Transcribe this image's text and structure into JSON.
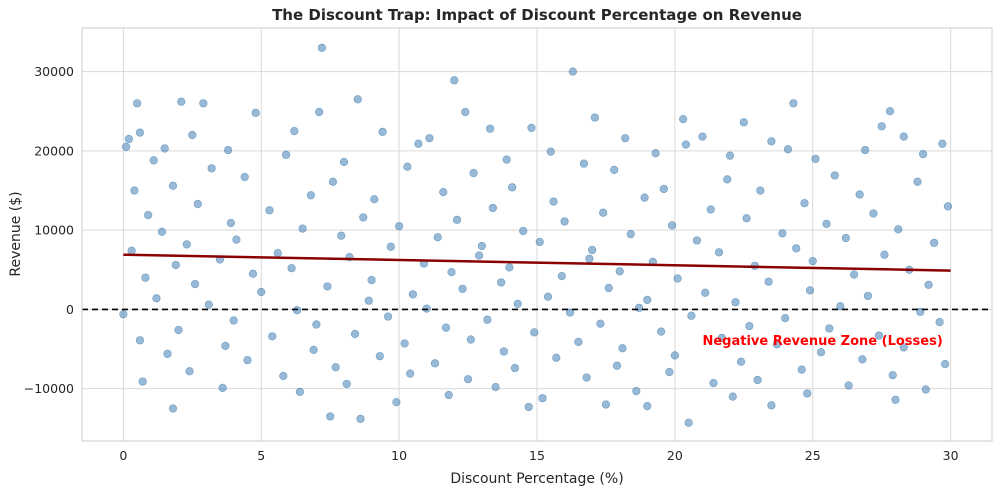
{
  "chart_data": {
    "type": "scatter",
    "title": "The Discount Trap: Impact of Discount Percentage on Revenue",
    "xlabel": "Discount Percentage (%)",
    "ylabel": "Revenue ($)",
    "xlim": [
      -1.5,
      31.5
    ],
    "ylim": [
      -16600,
      35500
    ],
    "xticks": [
      0,
      5,
      10,
      15,
      20,
      25,
      30
    ],
    "yticks": [
      -10000,
      0,
      10000,
      20000,
      30000
    ],
    "xtick_labels": [
      "0",
      "5",
      "10",
      "15",
      "20",
      "25",
      "30"
    ],
    "ytick_labels": [
      "−10000",
      "0",
      "10000",
      "20000",
      "30000"
    ],
    "grid": true,
    "legend": "none",
    "series": [
      {
        "type": "scatter",
        "color": "#4682b4",
        "opacity": 0.55,
        "points": [
          [
            7.2,
            33000
          ],
          [
            16.3,
            30000
          ],
          [
            12.0,
            28900
          ],
          [
            8.5,
            26500
          ],
          [
            2.1,
            26200
          ],
          [
            0.5,
            26000
          ],
          [
            2.9,
            26000
          ],
          [
            24.3,
            26000
          ],
          [
            27.8,
            25000
          ],
          [
            7.1,
            24900
          ],
          [
            12.4,
            24900
          ],
          [
            4.8,
            24800
          ],
          [
            17.1,
            24200
          ],
          [
            20.3,
            24000
          ],
          [
            22.5,
            23600
          ],
          [
            27.5,
            23100
          ],
          [
            13.3,
            22800
          ],
          [
            6.2,
            22500
          ],
          [
            14.8,
            22900
          ],
          [
            0.6,
            22300
          ],
          [
            0.2,
            21500
          ],
          [
            2.5,
            22000
          ],
          [
            9.4,
            22400
          ],
          [
            11.1,
            21600
          ],
          [
            21.0,
            21800
          ],
          [
            18.2,
            21600
          ],
          [
            23.5,
            21200
          ],
          [
            28.3,
            21800
          ],
          [
            29.7,
            20900
          ],
          [
            0.1,
            20500
          ],
          [
            1.5,
            20300
          ],
          [
            3.8,
            20100
          ],
          [
            10.7,
            20900
          ],
          [
            15.5,
            19900
          ],
          [
            19.3,
            19700
          ],
          [
            24.1,
            20200
          ],
          [
            26.9,
            20100
          ],
          [
            20.4,
            20800
          ],
          [
            5.9,
            19500
          ],
          [
            8.0,
            18600
          ],
          [
            25.1,
            19000
          ],
          [
            22.0,
            19400
          ],
          [
            1.1,
            18800
          ],
          [
            13.9,
            18900
          ],
          [
            16.7,
            18400
          ],
          [
            29.0,
            19600
          ],
          [
            10.3,
            18000
          ],
          [
            3.2,
            17800
          ],
          [
            17.8,
            17600
          ],
          [
            12.7,
            17200
          ],
          [
            25.8,
            16900
          ],
          [
            4.4,
            16700
          ],
          [
            21.9,
            16400
          ],
          [
            7.6,
            16100
          ],
          [
            28.8,
            16100
          ],
          [
            1.8,
            15600
          ],
          [
            14.1,
            15400
          ],
          [
            19.6,
            15200
          ],
          [
            23.1,
            15000
          ],
          [
            0.4,
            15000
          ],
          [
            11.6,
            14800
          ],
          [
            26.7,
            14500
          ],
          [
            6.8,
            14400
          ],
          [
            18.9,
            14100
          ],
          [
            9.1,
            13900
          ],
          [
            15.6,
            13600
          ],
          [
            24.7,
            13400
          ],
          [
            2.7,
            13300
          ],
          [
            29.9,
            13000
          ],
          [
            13.4,
            12800
          ],
          [
            21.3,
            12600
          ],
          [
            5.3,
            12500
          ],
          [
            17.4,
            12200
          ],
          [
            27.2,
            12100
          ],
          [
            0.9,
            11900
          ],
          [
            8.7,
            11600
          ],
          [
            22.6,
            11500
          ],
          [
            12.1,
            11300
          ],
          [
            16.0,
            11100
          ],
          [
            3.9,
            10900
          ],
          [
            25.5,
            10800
          ],
          [
            19.9,
            10600
          ],
          [
            10.0,
            10500
          ],
          [
            6.5,
            10200
          ],
          [
            28.1,
            10100
          ],
          [
            14.5,
            9900
          ],
          [
            1.4,
            9800
          ],
          [
            23.9,
            9600
          ],
          [
            18.4,
            9500
          ],
          [
            7.9,
            9300
          ],
          [
            11.4,
            9100
          ],
          [
            26.2,
            9000
          ],
          [
            4.1,
            8800
          ],
          [
            20.8,
            8700
          ],
          [
            15.1,
            8500
          ],
          [
            29.4,
            8400
          ],
          [
            2.3,
            8200
          ],
          [
            13.0,
            8000
          ],
          [
            9.7,
            7900
          ],
          [
            24.4,
            7700
          ],
          [
            17.0,
            7500
          ],
          [
            0.3,
            7400
          ],
          [
            21.6,
            7200
          ],
          [
            5.6,
            7100
          ],
          [
            27.6,
            6900
          ],
          [
            12.9,
            6800
          ],
          [
            8.2,
            6600
          ],
          [
            16.9,
            6400
          ],
          [
            3.5,
            6300
          ],
          [
            25.0,
            6100
          ],
          [
            19.2,
            6000
          ],
          [
            10.9,
            5800
          ],
          [
            1.9,
            5600
          ],
          [
            22.9,
            5500
          ],
          [
            14.0,
            5300
          ],
          [
            6.1,
            5200
          ],
          [
            28.5,
            5000
          ],
          [
            18.0,
            4800
          ],
          [
            11.9,
            4700
          ],
          [
            4.7,
            4500
          ],
          [
            26.5,
            4400
          ],
          [
            15.9,
            4200
          ],
          [
            0.8,
            4000
          ],
          [
            20.1,
            3900
          ],
          [
            9.0,
            3700
          ],
          [
            23.4,
            3500
          ],
          [
            13.7,
            3400
          ],
          [
            2.6,
            3200
          ],
          [
            29.2,
            3100
          ],
          [
            7.4,
            2900
          ],
          [
            17.6,
            2700
          ],
          [
            12.3,
            2600
          ],
          [
            24.9,
            2400
          ],
          [
            5.0,
            2200
          ],
          [
            21.1,
            2100
          ],
          [
            10.5,
            1900
          ],
          [
            27.0,
            1700
          ],
          [
            15.4,
            1600
          ],
          [
            1.2,
            1400
          ],
          [
            19.0,
            1200
          ],
          [
            8.9,
            1100
          ],
          [
            22.2,
            900
          ],
          [
            14.3,
            700
          ],
          [
            3.1,
            600
          ],
          [
            26.0,
            400
          ],
          [
            18.7,
            200
          ],
          [
            11.0,
            100
          ],
          [
            6.3,
            -100
          ],
          [
            28.9,
            -300
          ],
          [
            16.2,
            -400
          ],
          [
            0.0,
            -600
          ],
          [
            20.6,
            -800
          ],
          [
            9.6,
            -900
          ],
          [
            24.0,
            -1100
          ],
          [
            13.2,
            -1300
          ],
          [
            4.0,
            -1400
          ],
          [
            29.6,
            -1600
          ],
          [
            17.3,
            -1800
          ],
          [
            7.0,
            -1900
          ],
          [
            22.7,
            -2100
          ],
          [
            11.7,
            -2300
          ],
          [
            25.6,
            -2400
          ],
          [
            2.0,
            -2600
          ],
          [
            19.5,
            -2800
          ],
          [
            14.9,
            -2900
          ],
          [
            8.4,
            -3100
          ],
          [
            27.4,
            -3300
          ],
          [
            5.4,
            -3400
          ],
          [
            21.7,
            -3600
          ],
          [
            12.6,
            -3800
          ],
          [
            0.6,
            -3900
          ],
          [
            16.5,
            -4100
          ],
          [
            10.2,
            -4300
          ],
          [
            23.7,
            -4400
          ],
          [
            3.7,
            -4600
          ],
          [
            28.3,
            -4800
          ],
          [
            18.1,
            -4900
          ],
          [
            6.9,
            -5100
          ],
          [
            13.8,
            -5300
          ],
          [
            25.3,
            -5400
          ],
          [
            1.6,
            -5600
          ],
          [
            20.0,
            -5800
          ],
          [
            9.3,
            -5900
          ],
          [
            15.7,
            -6100
          ],
          [
            26.8,
            -6300
          ],
          [
            4.5,
            -6400
          ],
          [
            22.4,
            -6600
          ],
          [
            11.3,
            -6800
          ],
          [
            29.8,
            -6900
          ],
          [
            17.9,
            -7100
          ],
          [
            7.7,
            -7300
          ],
          [
            14.2,
            -7400
          ],
          [
            24.6,
            -7600
          ],
          [
            2.4,
            -7800
          ],
          [
            19.8,
            -7900
          ],
          [
            10.4,
            -8100
          ],
          [
            27.9,
            -8300
          ],
          [
            5.8,
            -8400
          ],
          [
            16.8,
            -8600
          ],
          [
            12.5,
            -8800
          ],
          [
            23.0,
            -8900
          ],
          [
            0.7,
            -9100
          ],
          [
            21.4,
            -9300
          ],
          [
            8.1,
            -9400
          ],
          [
            26.3,
            -9600
          ],
          [
            13.5,
            -9800
          ],
          [
            3.6,
            -9900
          ],
          [
            29.1,
            -10100
          ],
          [
            18.6,
            -10300
          ],
          [
            6.4,
            -10400
          ],
          [
            24.8,
            -10600
          ],
          [
            11.8,
            -10800
          ],
          [
            22.1,
            -11000
          ],
          [
            15.2,
            -11200
          ],
          [
            28.0,
            -11400
          ],
          [
            9.9,
            -11700
          ],
          [
            19.0,
            -12200
          ],
          [
            1.8,
            -12500
          ],
          [
            14.7,
            -12300
          ],
          [
            23.5,
            -12100
          ],
          [
            7.5,
            -13500
          ],
          [
            8.6,
            -13800
          ],
          [
            20.5,
            -14300
          ],
          [
            17.5,
            -12000
          ]
        ]
      },
      {
        "type": "line",
        "color": "#8b0000",
        "points": [
          [
            0,
            6900
          ],
          [
            30,
            4900
          ]
        ]
      }
    ],
    "reference_line": {
      "y": 0,
      "color": "#000000",
      "style": "dashed"
    },
    "annotation": {
      "text": "Negative Revenue Zone (Losses)",
      "x": 21,
      "y": -4500,
      "color": "#ff0000"
    }
  }
}
